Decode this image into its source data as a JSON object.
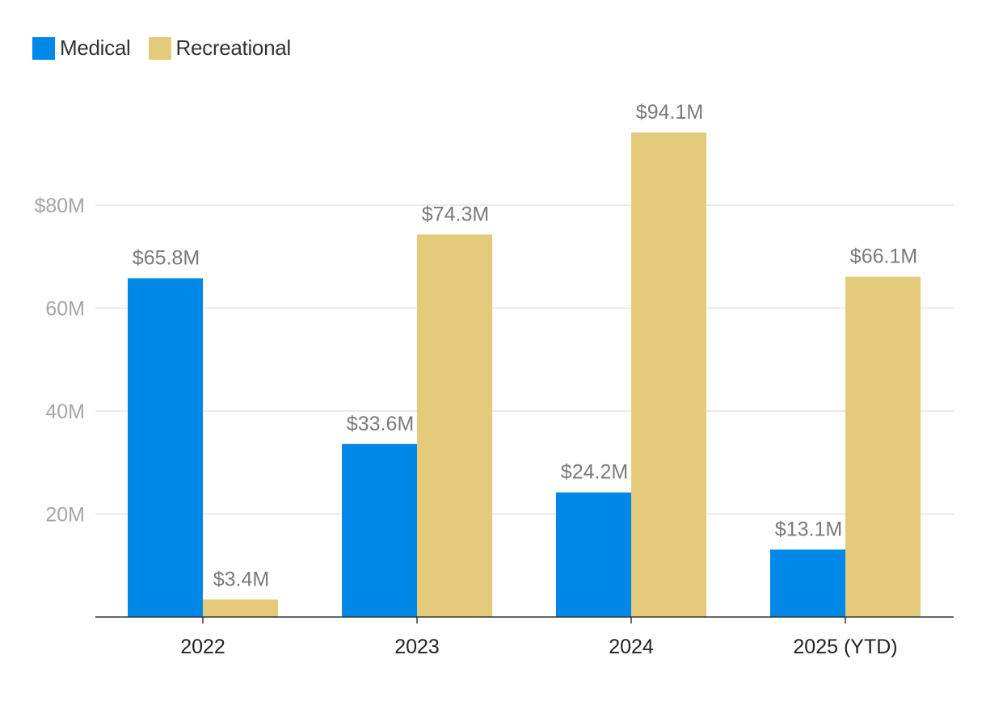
{
  "chart_data": {
    "type": "bar",
    "categories": [
      "2022",
      "2023",
      "2024",
      "2025 (YTD)"
    ],
    "series": [
      {
        "name": "Medical",
        "color": "#0088e8",
        "values": [
          65.8,
          33.6,
          24.2,
          13.1
        ],
        "labels": [
          "$65.8M",
          "$33.6M",
          "$24.2M",
          "$13.1M"
        ]
      },
      {
        "name": "Recreational",
        "color": "#e4cb7b",
        "values": [
          3.4,
          74.3,
          94.1,
          66.1
        ],
        "labels": [
          "$3.4M",
          "$74.3M",
          "$94.1M",
          "$66.1M"
        ]
      }
    ],
    "yticks": [
      {
        "value": 20,
        "label": "20M"
      },
      {
        "value": 40,
        "label": "40M"
      },
      {
        "value": 60,
        "label": "60M"
      },
      {
        "value": 80,
        "label": "$80M"
      }
    ],
    "ylim": [
      0,
      100
    ],
    "grid": true,
    "legend_position": "top-left",
    "title": "",
    "xlabel": "",
    "ylabel": ""
  }
}
